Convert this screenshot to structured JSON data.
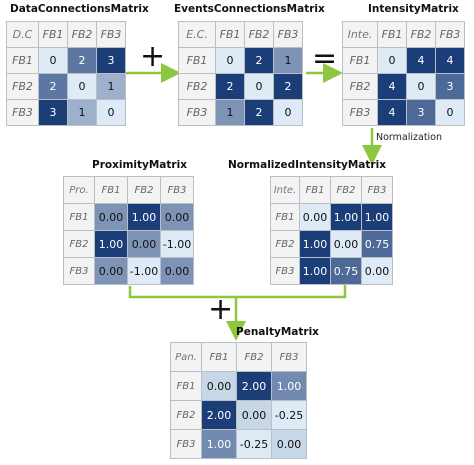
{
  "colors": {
    "arrow": "#8dc63f",
    "header_bg": "#f3f3f3",
    "cell_text_light": "#ffffff",
    "cell_text_dark": "#111111"
  },
  "operators": {
    "plus": "+",
    "equals": "="
  },
  "normalization_label": "Normalization",
  "matrices": {
    "data_connections": {
      "title": "DataConnectionsMatrix",
      "corner": "D.C",
      "col_headers": [
        "FB1",
        "FB2",
        "FB3"
      ],
      "row_headers": [
        "FB1",
        "FB2",
        "FB3"
      ],
      "cells": [
        [
          "0",
          "2",
          "3"
        ],
        [
          "2",
          "0",
          "1"
        ],
        [
          "3",
          "1",
          "0"
        ]
      ]
    },
    "events_connections": {
      "title": "EventsConnectionsMatrix",
      "corner": "E.C.",
      "col_headers": [
        "FB1",
        "FB2",
        "FB3"
      ],
      "row_headers": [
        "FB1",
        "FB2",
        "FB3"
      ],
      "cells": [
        [
          "0",
          "2",
          "1"
        ],
        [
          "2",
          "0",
          "2"
        ],
        [
          "1",
          "2",
          "0"
        ]
      ]
    },
    "intensity": {
      "title": "IntensityMatrix",
      "corner": "Inte.",
      "col_headers": [
        "FB1",
        "FB2",
        "FB3"
      ],
      "row_headers": [
        "FB1",
        "FB2",
        "FB3"
      ],
      "cells": [
        [
          "0",
          "4",
          "4"
        ],
        [
          "4",
          "0",
          "3"
        ],
        [
          "4",
          "3",
          "0"
        ]
      ]
    },
    "proximity": {
      "title": "ProximityMatrix",
      "corner": "Pro.",
      "col_headers": [
        "FB1",
        "FB2",
        "FB3"
      ],
      "row_headers": [
        "FB1",
        "FB2",
        "FB3"
      ],
      "cells": [
        [
          "0.00",
          "1.00",
          "0.00"
        ],
        [
          "1.00",
          "0.00",
          "-1.00"
        ],
        [
          "0.00",
          "-1.00",
          "0.00"
        ]
      ]
    },
    "normalized_intensity": {
      "title": "NormalizedIntensityMatrix",
      "corner": "Inte.",
      "col_headers": [
        "FB1",
        "FB2",
        "FB3"
      ],
      "row_headers": [
        "FB1",
        "FB2",
        "FB3"
      ],
      "cells": [
        [
          "0.00",
          "1.00",
          "1.00"
        ],
        [
          "1.00",
          "0.00",
          "0.75"
        ],
        [
          "1.00",
          "0.75",
          "0.00"
        ]
      ]
    },
    "penalty": {
      "title": "PenaltyMatrix",
      "corner": "Pan.",
      "col_headers": [
        "FB1",
        "FB2",
        "FB3"
      ],
      "row_headers": [
        "FB1",
        "FB2",
        "FB3"
      ],
      "cells": [
        [
          "0.00",
          "2.00",
          "1.00"
        ],
        [
          "2.00",
          "0.00",
          "-0.25"
        ],
        [
          "1.00",
          "-0.25",
          "0.00"
        ]
      ]
    }
  }
}
